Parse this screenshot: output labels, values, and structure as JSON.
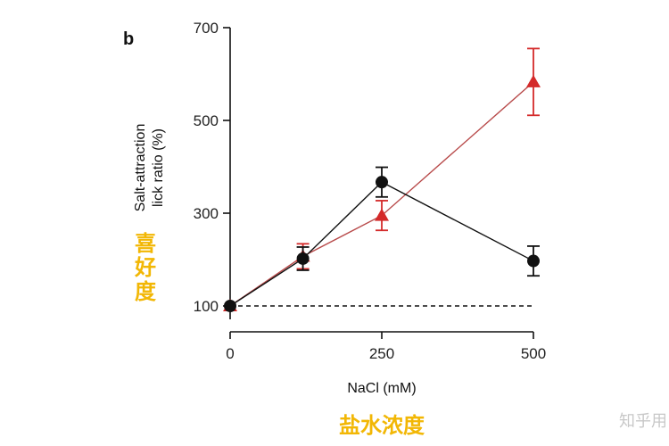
{
  "panel_label": "b",
  "annotations": {
    "y_chinese": [
      "喜",
      "好",
      "度"
    ],
    "x_chinese": "盐水浓度",
    "watermark": "知乎用"
  },
  "colors": {
    "black_series": "#111111",
    "red_series": "#d42a2a",
    "red_line": "#b84a4a",
    "annotation": "#f2b705"
  },
  "chart_data": {
    "type": "line",
    "xlabel": "NaCl (mM)",
    "ylabel_lines": [
      "Salt-attraction",
      "lick ratio (%)"
    ],
    "x_ticks": [
      0,
      250,
      500
    ],
    "y_ticks": [
      100,
      300,
      500,
      700
    ],
    "xlim": [
      0,
      500
    ],
    "ylim": [
      60,
      700
    ],
    "reference_line": {
      "y": 100,
      "style": "dashed"
    },
    "grid": false,
    "series": [
      {
        "marker": "circle",
        "color": "#111111",
        "points": [
          {
            "x": 0,
            "y": 100,
            "err": 0
          },
          {
            "x": 120,
            "y": 202,
            "err": 25
          },
          {
            "x": 250,
            "y": 367,
            "err": 32
          },
          {
            "x": 500,
            "y": 197,
            "err": 32
          }
        ]
      },
      {
        "marker": "triangle",
        "color": "#d42a2a",
        "points": [
          {
            "x": 0,
            "y": 100,
            "err": 0
          },
          {
            "x": 120,
            "y": 207,
            "err": 27
          },
          {
            "x": 250,
            "y": 295,
            "err": 32
          },
          {
            "x": 500,
            "y": 583,
            "err": 72
          }
        ]
      }
    ]
  }
}
